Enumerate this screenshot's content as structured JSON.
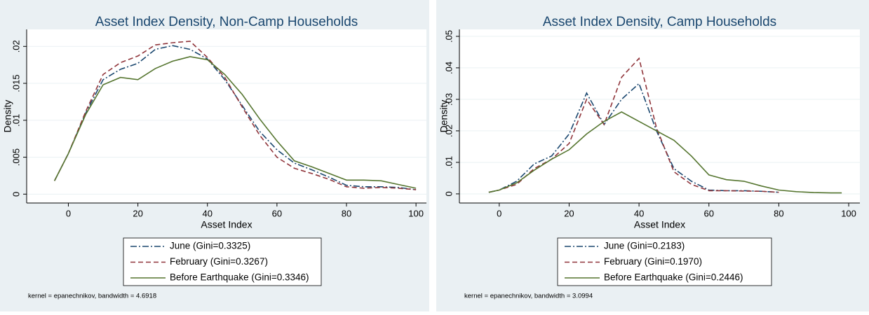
{
  "chart_data": [
    {
      "type": "line",
      "title": "Asset Index Density, Non-Camp Households",
      "x_label": "Asset Index",
      "y_label": "Density",
      "x": [
        -4,
        0,
        5,
        10,
        15,
        20,
        25,
        30,
        35,
        40,
        45,
        50,
        55,
        60,
        65,
        70,
        75,
        80,
        85,
        90,
        95,
        100
      ],
      "series": [
        {
          "name": "June (Gini=0.3325)",
          "color": "#1a476f",
          "style": "dashdot",
          "values": [
            0.0018,
            0.0055,
            0.011,
            0.0155,
            0.0169,
            0.0177,
            0.0196,
            0.0201,
            0.0196,
            0.0183,
            0.0155,
            0.012,
            0.0085,
            0.006,
            0.0042,
            0.0033,
            0.0023,
            0.0012,
            0.001,
            0.001,
            0.0009,
            0.0006
          ]
        },
        {
          "name": "February (Gini=0.3267)",
          "color": "#90353b",
          "style": "dash",
          "values": [
            0.0018,
            0.0055,
            0.0112,
            0.0162,
            0.0178,
            0.0187,
            0.0202,
            0.0205,
            0.0207,
            0.0185,
            0.0158,
            0.0118,
            0.008,
            0.005,
            0.0035,
            0.0028,
            0.002,
            0.001,
            0.0008,
            0.0009,
            0.0008,
            0.0006
          ]
        },
        {
          "name": "Before Earthquake (Gini=0.3346)",
          "color": "#55752f",
          "style": "solid",
          "values": [
            0.0018,
            0.0055,
            0.0108,
            0.0148,
            0.0158,
            0.0155,
            0.017,
            0.018,
            0.0186,
            0.0182,
            0.0162,
            0.0135,
            0.0102,
            0.0072,
            0.0045,
            0.0037,
            0.0028,
            0.0019,
            0.0019,
            0.0018,
            0.0013,
            0.0008
          ]
        }
      ],
      "xlim": [
        -12,
        103
      ],
      "xticks": [
        0,
        20,
        40,
        60,
        80,
        100
      ],
      "ylim": [
        -0.0012,
        0.0223
      ],
      "yticks": [
        0,
        {
          "value": 0.005,
          "label": ".005"
        },
        {
          "value": 0.01,
          "label": ".01"
        },
        {
          "value": 0.015,
          "label": ".015"
        },
        {
          "value": 0.02,
          "label": ".02"
        }
      ],
      "grid": true,
      "legend": "bottom",
      "note": "kernel = epanechnikov, bandwidth = 4.6918"
    },
    {
      "type": "line",
      "title": "Asset Index Density, Camp Households",
      "x_label": "Asset Index",
      "y_label": "Density",
      "x": [
        -3,
        0,
        5,
        10,
        15,
        20,
        25,
        30,
        35,
        40,
        45,
        50,
        55,
        60,
        65,
        70,
        75,
        80,
        85,
        90,
        95,
        98
      ],
      "series": [
        {
          "name": "June (Gini=0.2183)",
          "color": "#1a476f",
          "style": "dashdot",
          "values": [
            0.0005,
            0.0012,
            0.004,
            0.0095,
            0.012,
            0.019,
            0.032,
            0.022,
            0.03,
            0.035,
            0.02,
            0.008,
            0.004,
            0.0012,
            0.001,
            0.001,
            0.0008,
            0.0005,
            null,
            null,
            null,
            null
          ]
        },
        {
          "name": "February (Gini=0.1970)",
          "color": "#90353b",
          "style": "dash",
          "values": [
            0.0005,
            0.0012,
            0.003,
            0.008,
            0.011,
            0.016,
            0.03,
            0.022,
            0.037,
            0.043,
            0.021,
            0.007,
            0.003,
            0.001,
            0.001,
            0.0009,
            0.0008,
            0.0005,
            null,
            null,
            null,
            null
          ]
        },
        {
          "name": "Before Earthquake (Gini=0.2446)",
          "color": "#55752f",
          "style": "solid",
          "values": [
            0.0005,
            0.0012,
            0.0035,
            0.0075,
            0.011,
            0.014,
            0.019,
            0.023,
            0.026,
            0.023,
            0.02,
            0.017,
            0.012,
            0.006,
            0.0045,
            0.004,
            0.0025,
            0.0012,
            0.0007,
            0.0004,
            0.0003,
            0.0003
          ]
        }
      ],
      "xlim": [
        -11.4,
        103.2
      ],
      "xticks": [
        0,
        20,
        40,
        60,
        80,
        100
      ],
      "ylim": [
        -0.0029,
        0.0522
      ],
      "yticks": [
        0,
        {
          "value": 0.01,
          "label": ".01"
        },
        {
          "value": 0.02,
          "label": ".02"
        },
        {
          "value": 0.03,
          "label": ".03"
        },
        {
          "value": 0.04,
          "label": ".04"
        },
        {
          "value": 0.05,
          "label": ".05"
        }
      ],
      "grid": true,
      "legend": "bottom",
      "note": "kernel = epanechnikov, bandwidth = 3.0994"
    }
  ]
}
